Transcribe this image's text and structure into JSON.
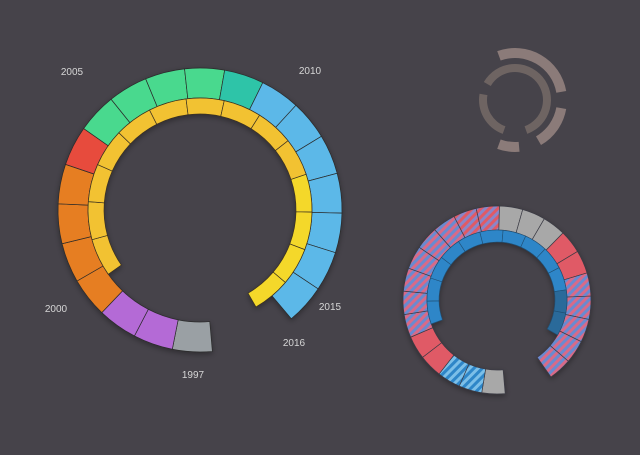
{
  "chart_data": [
    {
      "type": "radial-bar",
      "title": "",
      "year_labels": [
        "2005",
        "2010",
        "2000",
        "2015",
        "2016",
        "1997"
      ],
      "outer_ring": [
        {
          "color": "#9aa0a4",
          "cells": 1,
          "depth": 1.0
        },
        {
          "color": "#b46ad6",
          "cells": 2,
          "depth": 1.0
        },
        {
          "color": "#e67e22",
          "cells": 4,
          "depth": 0.78
        },
        {
          "color": "#e74c3c",
          "cells": 1,
          "depth": 0.9
        },
        {
          "color": "#48d98e",
          "cells": 4,
          "depth": 0.85
        },
        {
          "color": "#2ec4a8",
          "cells": 1,
          "depth": 0.7
        },
        {
          "color": "#5bb8e8",
          "cells": 7,
          "depth": 1.0
        }
      ],
      "inner_ring": [
        {
          "color": "#f2c233",
          "cells": 10
        },
        {
          "color": "#f4d82a",
          "cells": 4
        }
      ]
    },
    {
      "type": "radial-bar",
      "title": "",
      "rings": [
        {
          "color": "#8b7b79",
          "segments": 3
        },
        {
          "color": "#6e6462",
          "segments": 2
        }
      ]
    },
    {
      "type": "radial-bar",
      "title": "",
      "outer_ring": [
        {
          "color": "#a8a8a8",
          "pattern": "solid",
          "cells": 1
        },
        {
          "color": "#4a9ad8",
          "pattern": "hatch",
          "cells": 2
        },
        {
          "color": "#e05a66",
          "pattern": "solid",
          "cells": 2
        },
        {
          "color": "#9b7fb0",
          "pattern": "hatch",
          "cells": 6
        },
        {
          "color": "#e05a66",
          "pattern": "hatch",
          "cells": 2
        },
        {
          "color": "#a8a8a8",
          "pattern": "solid",
          "cells": 3
        },
        {
          "color": "#e05a66",
          "pattern": "solid",
          "cells": 2
        },
        {
          "color": "#c07a9a",
          "pattern": "hatch",
          "cells": 5
        }
      ],
      "inner_ring": [
        {
          "color": "#2e86c8",
          "cells": 10
        },
        {
          "color": "#2a6a9a",
          "cells": 2
        }
      ]
    }
  ]
}
